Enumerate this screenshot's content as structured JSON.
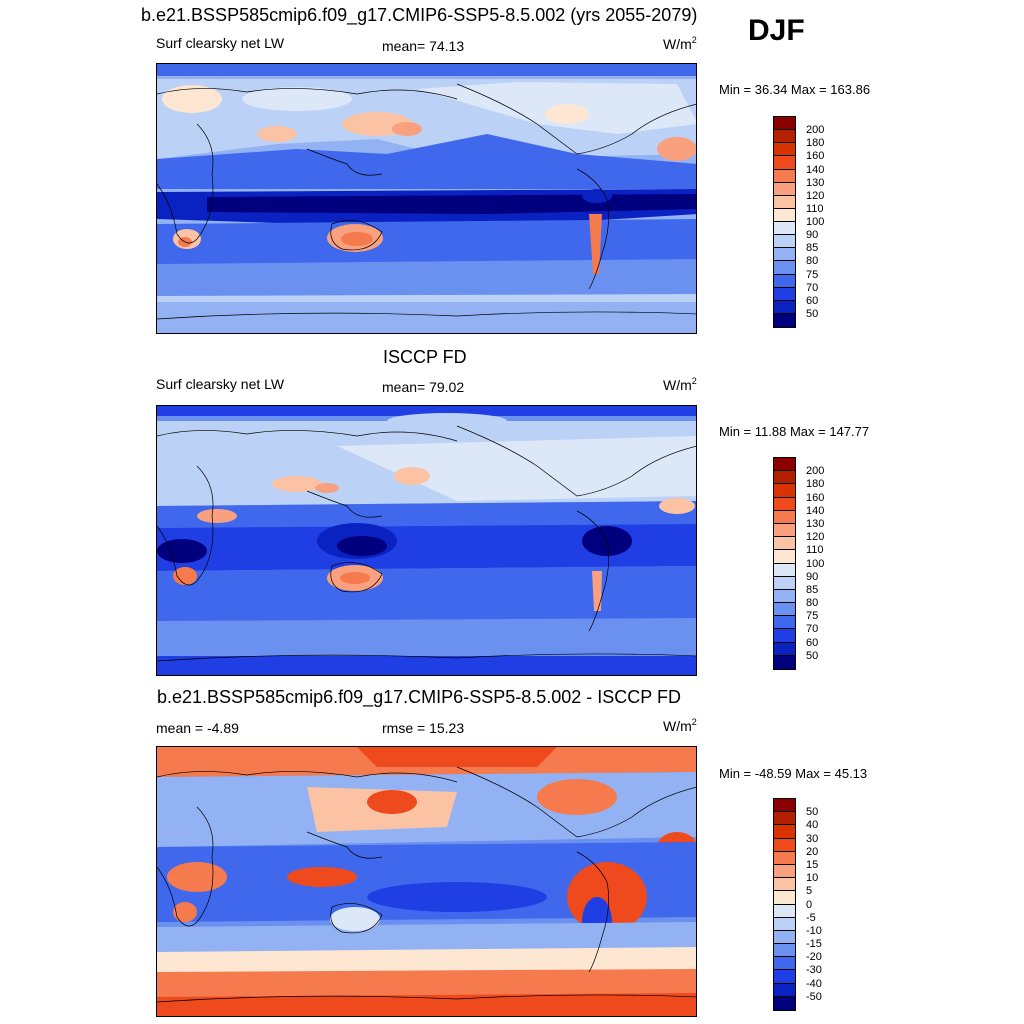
{
  "header": {
    "title": "b.e21.BSSP585cmip6.f09_g17.CMIP6-SSP5-8.5.002 (yrs 2055-2079)",
    "season": "DJF"
  },
  "panels": [
    {
      "id": "model",
      "title": "",
      "field_label": "Surf clearsky net LW",
      "stat_text": "mean=  74.13",
      "units_base": "W/m",
      "units_sup": "2",
      "minmax": "Min =  36.34 Max = 163.86",
      "colorbar": {
        "labels": [
          "200",
          "180",
          "160",
          "140",
          "130",
          "120",
          "110",
          "100",
          "90",
          "85",
          "80",
          "75",
          "70",
          "60",
          "50"
        ],
        "colors": [
          "#8B0000",
          "#B22000",
          "#D83300",
          "#EE4A1E",
          "#F57A4E",
          "#F9A07E",
          "#FBC3A4",
          "#FDE6D2",
          "#DCE7F8",
          "#BBD1F6",
          "#92B2F3",
          "#6A90F0",
          "#3F68EC",
          "#1F3FE4",
          "#0A22C2",
          "#00007E"
        ]
      }
    },
    {
      "id": "obs",
      "title": "ISCCP FD",
      "field_label": "Surf clearsky net LW",
      "stat_text": "mean=  79.02",
      "units_base": "W/m",
      "units_sup": "2",
      "minmax": "Min =  11.88 Max = 147.77",
      "colorbar": {
        "labels": [
          "200",
          "180",
          "160",
          "140",
          "130",
          "120",
          "110",
          "100",
          "90",
          "85",
          "80",
          "75",
          "70",
          "60",
          "50"
        ],
        "colors": [
          "#8B0000",
          "#B22000",
          "#D83300",
          "#EE4A1E",
          "#F57A4E",
          "#F9A07E",
          "#FBC3A4",
          "#FDE6D2",
          "#DCE7F8",
          "#BBD1F6",
          "#92B2F3",
          "#6A90F0",
          "#3F68EC",
          "#1F3FE4",
          "#0A22C2",
          "#00007E"
        ]
      }
    },
    {
      "id": "diff",
      "title": "b.e21.BSSP585cmip6.f09_g17.CMIP6-SSP5-8.5.002 - ISCCP FD",
      "field_label": "mean =  -4.89",
      "stat_text": "rmse =  15.23",
      "units_base": "W/m",
      "units_sup": "2",
      "minmax": "Min = -48.59 Max =  45.13",
      "colorbar": {
        "labels": [
          "50",
          "40",
          "30",
          "20",
          "15",
          "10",
          "5",
          "0",
          "-5",
          "-10",
          "-15",
          "-20",
          "-30",
          "-40",
          "-50"
        ],
        "colors": [
          "#8B0000",
          "#B22000",
          "#D83300",
          "#EE4A1E",
          "#F57A4E",
          "#F9A07E",
          "#FBC3A4",
          "#FDE6D2",
          "#DCE7F8",
          "#BBD1F6",
          "#92B2F3",
          "#6A90F0",
          "#3F68EC",
          "#1F3FE4",
          "#0A22C2",
          "#00007E"
        ]
      }
    }
  ],
  "chart_data": [
    {
      "type": "heatmap",
      "title": "b.e21.BSSP585cmip6.f09_g17.CMIP6-SSP5-8.5.002 (yrs 2055-2079)",
      "variable": "Surf clearsky net LW",
      "units": "W/m2",
      "season": "DJF",
      "mean": 74.13,
      "min": 36.34,
      "max": 163.86,
      "levels": [
        50,
        60,
        70,
        75,
        80,
        85,
        90,
        100,
        110,
        120,
        130,
        140,
        160,
        180,
        200
      ]
    },
    {
      "type": "heatmap",
      "title": "ISCCP FD",
      "variable": "Surf clearsky net LW",
      "units": "W/m2",
      "mean": 79.02,
      "min": 11.88,
      "max": 147.77,
      "levels": [
        50,
        60,
        70,
        75,
        80,
        85,
        90,
        100,
        110,
        120,
        130,
        140,
        160,
        180,
        200
      ]
    },
    {
      "type": "heatmap",
      "title": "b.e21.BSSP585cmip6.f09_g17.CMIP6-SSP5-8.5.002 - ISCCP FD",
      "units": "W/m2",
      "mean": -4.89,
      "rmse": 15.23,
      "min": -48.59,
      "max": 45.13,
      "levels": [
        -50,
        -40,
        -30,
        -20,
        -15,
        -10,
        -5,
        0,
        5,
        10,
        15,
        20,
        30,
        40,
        50
      ]
    }
  ]
}
